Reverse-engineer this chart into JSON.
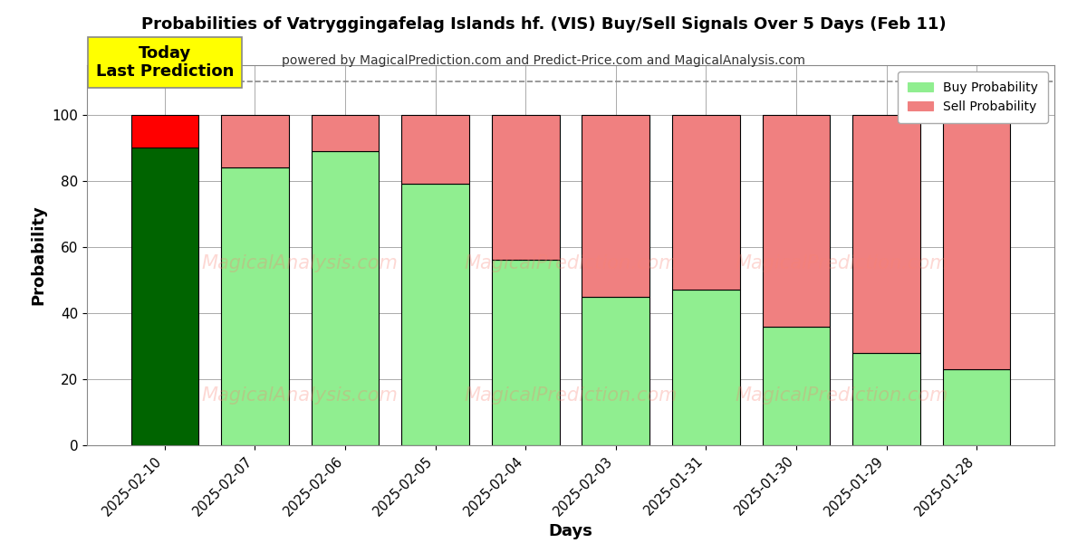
{
  "title": "Probabilities of Vatryggingafelag Islands hf. (VIS) Buy/Sell Signals Over 5 Days (Feb 11)",
  "subtitle": "powered by MagicalPrediction.com and Predict-Price.com and MagicalAnalysis.com",
  "xlabel": "Days",
  "ylabel": "Probability",
  "categories": [
    "2025-02-10",
    "2025-02-07",
    "2025-02-06",
    "2025-02-05",
    "2025-02-04",
    "2025-02-03",
    "2025-01-31",
    "2025-01-30",
    "2025-01-29",
    "2025-01-28"
  ],
  "buy_values": [
    90,
    84,
    89,
    79,
    56,
    45,
    47,
    36,
    28,
    23
  ],
  "sell_values": [
    10,
    16,
    11,
    21,
    44,
    55,
    53,
    64,
    72,
    77
  ],
  "buy_color_today": "#006400",
  "sell_color_today": "#ff0000",
  "buy_color_normal": "#90ee90",
  "sell_color_normal": "#f08080",
  "bar_edge_color": "#000000",
  "today_annotation_text": "Today\nLast Prediction",
  "today_annotation_bg": "#ffff00",
  "ylim": [
    0,
    115
  ],
  "yticks": [
    0,
    20,
    40,
    60,
    80,
    100
  ],
  "dashed_line_y": 110,
  "legend_buy": "Buy Probability",
  "legend_sell": "Sell Probability",
  "figsize": [
    12,
    6
  ],
  "dpi": 100,
  "background_color": "#ffffff",
  "grid_color": "#aaaaaa"
}
